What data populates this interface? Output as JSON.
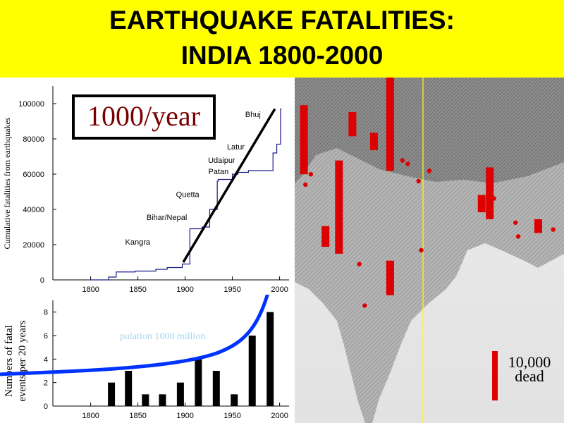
{
  "header": {
    "title_line1": "EARTHQUAKE FATALITIES:",
    "title_line2": "INDIA 1800-2000",
    "background": "#ffff00"
  },
  "rate_annotation": "1000/year",
  "map_legend": {
    "label_line1": "10,000",
    "label_line2": "dead",
    "bar_color": "#dd0000"
  },
  "chart_data": [
    {
      "type": "line",
      "ylabel": "Cumulative fatalities from earthquakes",
      "xlabel": "",
      "xlim": [
        1760,
        2010
      ],
      "ylim": [
        0,
        110000
      ],
      "x_ticks": [
        1800,
        1850,
        1900,
        1950,
        2000
      ],
      "y_ticks": [
        0,
        20000,
        40000,
        60000,
        80000,
        100000
      ],
      "series": [
        {
          "values_comment": "step series of cumulative deaths",
          "x": [
            1800,
            1819,
            1819,
            1827,
            1827,
            1847,
            1847,
            1869,
            1869,
            1881,
            1881,
            1897,
            1897,
            1905,
            1905,
            1918,
            1918,
            1926,
            1926,
            1934,
            1934,
            1935,
            1935,
            1950,
            1950,
            1956,
            1956,
            1967,
            1967,
            1993,
            1993,
            1997,
            1997,
            2001,
            2001,
            2002
          ],
          "y": [
            0,
            0,
            1600,
            1600,
            4500,
            4500,
            5000,
            5000,
            6000,
            6000,
            7000,
            7000,
            9000,
            9000,
            29000,
            29000,
            30000,
            30000,
            40000,
            40000,
            56000,
            56000,
            57000,
            57000,
            60000,
            60000,
            61000,
            61000,
            62000,
            62000,
            72000,
            72000,
            77000,
            77000,
            97000,
            97000
          ]
        }
      ],
      "trend_line": {
        "x": [
          1898,
          1995
        ],
        "y": [
          10000,
          97000
        ]
      },
      "annotations": [
        {
          "label": "Bhuj",
          "x": 1980,
          "y": 92500
        },
        {
          "label": "Latur",
          "x": 1963,
          "y": 74000
        },
        {
          "label": "Udaipur",
          "x": 1953,
          "y": 66500
        },
        {
          "label": "Patan",
          "x": 1946,
          "y": 60000
        },
        {
          "label": "Quetta",
          "x": 1915,
          "y": 47000
        },
        {
          "label": "Bihar/Nepal",
          "x": 1902,
          "y": 34000
        },
        {
          "label": "Kangra",
          "x": 1863,
          "y": 20000
        }
      ]
    },
    {
      "type": "bar",
      "ylabel_line1": "Numbers of fatal",
      "ylabel_line2": "events per 20 years",
      "xlim": [
        1760,
        2010
      ],
      "ylim": [
        0,
        9
      ],
      "x_ticks": [
        1800,
        1850,
        1900,
        1950,
        2000
      ],
      "y_ticks": [
        0,
        2,
        4,
        6,
        8
      ],
      "x": [
        1822,
        1840,
        1858,
        1876,
        1895,
        1914,
        1933,
        1952,
        1971,
        1990
      ],
      "values": [
        2,
        3,
        1,
        1,
        2,
        4,
        3,
        1,
        6,
        8
      ],
      "population_curve_label": "pulation 1000 million",
      "population_curve_color": "#0033ff"
    }
  ],
  "map_data": {
    "meridian_color": "#ffff00",
    "bars": [
      {
        "lon_frac": 0.02,
        "top_frac": 0.08,
        "height_frac": 0.2
      },
      {
        "lon_frac": 0.1,
        "top_frac": 0.43,
        "height_frac": 0.06
      },
      {
        "lon_frac": 0.15,
        "top_frac": 0.24,
        "height_frac": 0.27
      },
      {
        "lon_frac": 0.2,
        "top_frac": 0.1,
        "height_frac": 0.07
      },
      {
        "lon_frac": 0.28,
        "top_frac": 0.16,
        "height_frac": 0.05
      },
      {
        "lon_frac": 0.34,
        "top_frac": 0.0,
        "height_frac": 0.27
      },
      {
        "lon_frac": 0.34,
        "top_frac": 0.53,
        "height_frac": 0.1
      },
      {
        "lon_frac": 0.68,
        "top_frac": 0.34,
        "height_frac": 0.05
      },
      {
        "lon_frac": 0.71,
        "top_frac": 0.26,
        "height_frac": 0.15
      },
      {
        "lon_frac": 0.89,
        "top_frac": 0.41,
        "height_frac": 0.04
      }
    ],
    "dots": [
      [
        0.04,
        0.31
      ],
      [
        0.06,
        0.28
      ],
      [
        0.24,
        0.54
      ],
      [
        0.26,
        0.66
      ],
      [
        0.42,
        0.25
      ],
      [
        0.46,
        0.3
      ],
      [
        0.5,
        0.27
      ],
      [
        0.47,
        0.5
      ],
      [
        0.74,
        0.35
      ],
      [
        0.82,
        0.42
      ],
      [
        0.83,
        0.46
      ],
      [
        0.96,
        0.44
      ],
      [
        0.4,
        0.24
      ],
      [
        0.3,
        0.18
      ]
    ]
  }
}
